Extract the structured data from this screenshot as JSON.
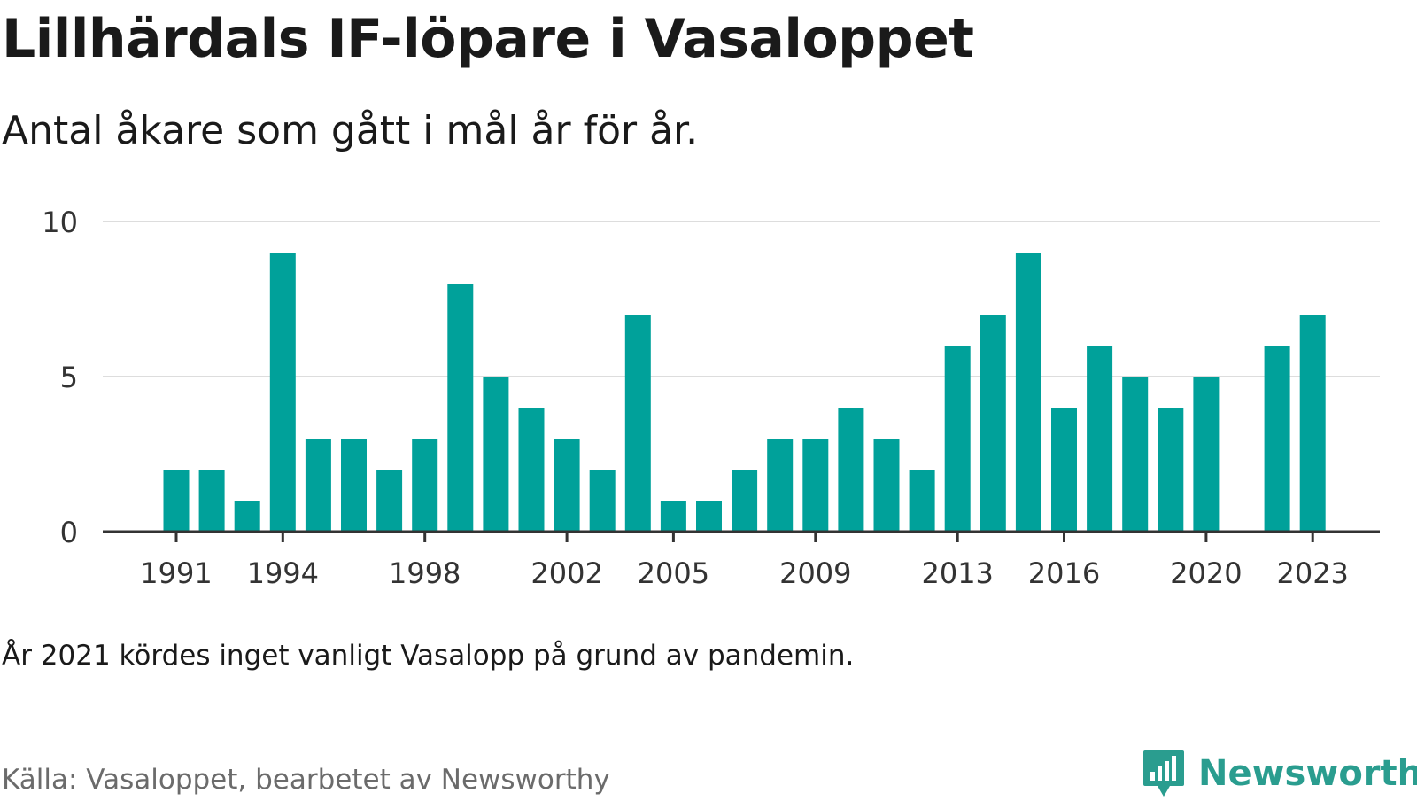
{
  "header": {
    "title": "Lillhärdals IF-löpare i Vasaloppet",
    "subtitle": "Antal åkare som gått i mål år för år."
  },
  "footer": {
    "note": "År 2021 kördes inget vanligt Vasalopp på grund av pandemin.",
    "source": "Källa: Vasaloppet, bearbetet av Newsworthy",
    "brand": "Newsworthy",
    "brand_icon": "newsworthy-logo-icon"
  },
  "colors": {
    "bar": "#00a19a",
    "grid": "#dddddd",
    "axis": "#333333",
    "brand": "#2a9d8f"
  },
  "chart_data": {
    "type": "bar",
    "categories": [
      1991,
      1992,
      1993,
      1994,
      1995,
      1996,
      1997,
      1998,
      1999,
      2000,
      2001,
      2002,
      2003,
      2004,
      2005,
      2006,
      2007,
      2008,
      2009,
      2010,
      2011,
      2012,
      2013,
      2014,
      2015,
      2016,
      2017,
      2018,
      2019,
      2020,
      2021,
      2022,
      2023
    ],
    "values": [
      2,
      2,
      1,
      9,
      3,
      3,
      2,
      3,
      8,
      5,
      4,
      3,
      2,
      7,
      1,
      1,
      2,
      3,
      3,
      4,
      3,
      2,
      6,
      7,
      9,
      4,
      6,
      5,
      4,
      5,
      null,
      6,
      7
    ],
    "ylim": [
      0,
      10
    ],
    "yticks": [
      0,
      5,
      10
    ],
    "xticks": [
      1991,
      1994,
      1998,
      2002,
      2005,
      2009,
      2013,
      2016,
      2020,
      2023
    ],
    "grid": true,
    "legend": "none"
  }
}
